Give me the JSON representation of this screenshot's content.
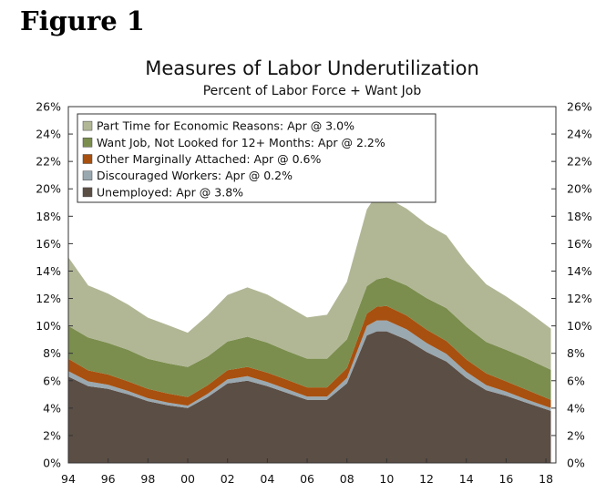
{
  "figure_label": "Figure 1",
  "chart_data": {
    "type": "area",
    "stacked": true,
    "title": "Measures of Labor Underutilization",
    "subtitle": "Percent of Labor Force + Want Job",
    "x": [
      1994,
      1995,
      1996,
      1997,
      1998,
      1999,
      2000,
      2001,
      2002,
      2003,
      2004,
      2005,
      2006,
      2007,
      2008,
      2009,
      2009.5,
      2010,
      2011,
      2012,
      2013,
      2014,
      2015,
      2016,
      2017,
      2018.25
    ],
    "xlim": [
      1994,
      2018.5
    ],
    "x_tick_values": [
      1994,
      1996,
      1998,
      2000,
      2002,
      2004,
      2006,
      2008,
      2010,
      2012,
      2014,
      2016,
      2018
    ],
    "x_tick_labels": [
      "94",
      "96",
      "98",
      "00",
      "02",
      "04",
      "06",
      "08",
      "10",
      "12",
      "14",
      "16",
      "18"
    ],
    "ylim": [
      0,
      26
    ],
    "y_tick_values": [
      0,
      2,
      4,
      6,
      8,
      10,
      12,
      14,
      16,
      18,
      20,
      22,
      24,
      26
    ],
    "y_tick_labels": [
      "0%",
      "2%",
      "4%",
      "6%",
      "8%",
      "10%",
      "12%",
      "14%",
      "16%",
      "18%",
      "20%",
      "22%",
      "24%",
      "26%"
    ],
    "legend_position": "top-left",
    "series": [
      {
        "name": "Unemployed",
        "legend": "Unemployed: Apr @ 3.8%",
        "color": "#5b4e45",
        "values": [
          6.3,
          5.6,
          5.4,
          5.0,
          4.5,
          4.2,
          4.0,
          4.8,
          5.8,
          6.0,
          5.6,
          5.1,
          4.6,
          4.6,
          5.8,
          9.3,
          9.6,
          9.6,
          9.0,
          8.1,
          7.4,
          6.2,
          5.3,
          4.9,
          4.4,
          3.8
        ]
      },
      {
        "name": "Discouraged Workers",
        "legend": "Discouraged Workers: Apr @ 0.2%",
        "color": "#9aa8b0",
        "values": [
          0.4,
          0.35,
          0.3,
          0.25,
          0.22,
          0.2,
          0.18,
          0.25,
          0.3,
          0.33,
          0.3,
          0.28,
          0.25,
          0.25,
          0.4,
          0.7,
          0.8,
          0.8,
          0.75,
          0.65,
          0.55,
          0.45,
          0.38,
          0.3,
          0.25,
          0.2
        ]
      },
      {
        "name": "Other Marginally Attached",
        "legend": "Other Marginally Attached: Apr @ 0.6%",
        "color": "#a8500f",
        "values": [
          0.9,
          0.8,
          0.75,
          0.7,
          0.68,
          0.66,
          0.62,
          0.62,
          0.66,
          0.68,
          0.68,
          0.68,
          0.66,
          0.66,
          0.72,
          0.9,
          1.0,
          1.05,
          1.0,
          0.98,
          0.95,
          0.9,
          0.85,
          0.75,
          0.7,
          0.6
        ]
      },
      {
        "name": "Want Job, Not Looked for 12+ Months",
        "legend": "Want Job, Not Looked for 12+ Months: Apr @ 2.2%",
        "color": "#7b8e4e",
        "values": [
          2.4,
          2.4,
          2.3,
          2.3,
          2.2,
          2.2,
          2.2,
          2.1,
          2.1,
          2.2,
          2.2,
          2.1,
          2.1,
          2.1,
          2.1,
          2.0,
          2.0,
          2.1,
          2.2,
          2.3,
          2.4,
          2.4,
          2.3,
          2.3,
          2.3,
          2.2
        ]
      },
      {
        "name": "Part Time for Economic Reasons",
        "legend": "Part Time for Economic Reasons: Apr @ 3.0%",
        "color": "#b1b795",
        "values": [
          5.0,
          3.8,
          3.6,
          3.3,
          3.0,
          2.8,
          2.5,
          3.0,
          3.4,
          3.6,
          3.5,
          3.3,
          3.0,
          3.2,
          4.2,
          5.6,
          6.2,
          5.8,
          5.6,
          5.4,
          5.3,
          4.7,
          4.2,
          3.9,
          3.5,
          3.0
        ]
      }
    ]
  }
}
